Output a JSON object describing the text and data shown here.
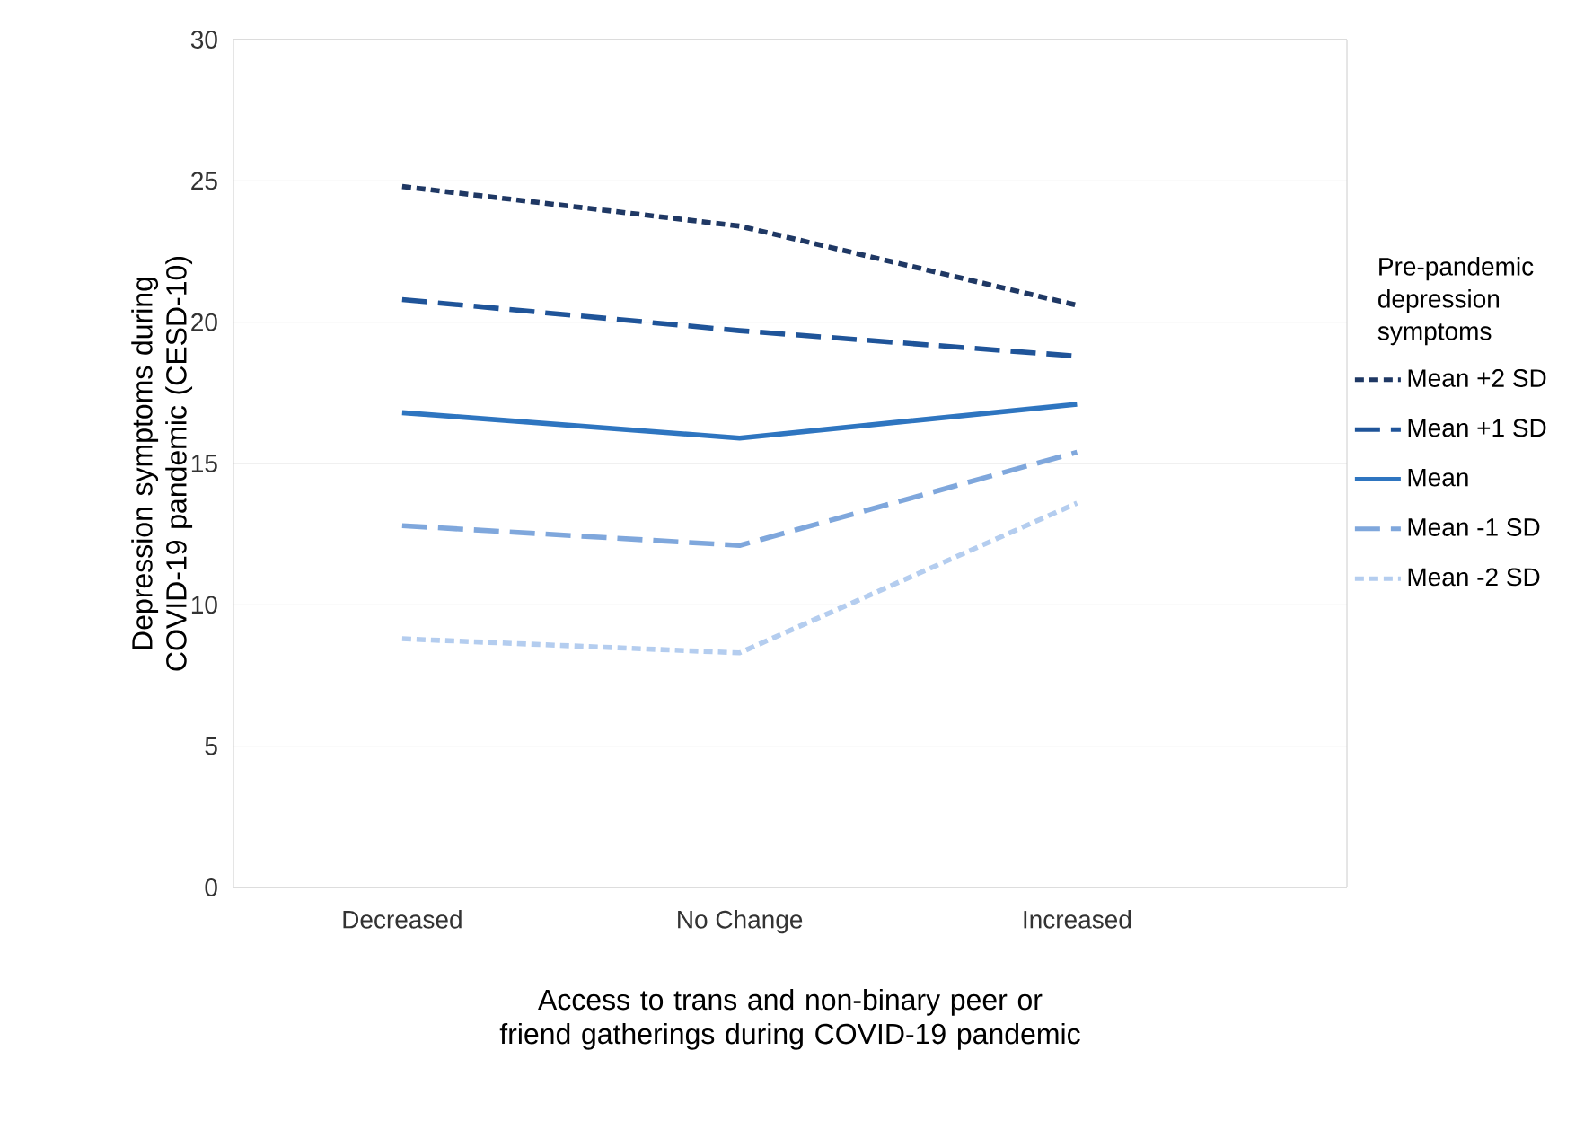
{
  "chart_data": {
    "type": "line",
    "xlabel": "Access to trans and non-binary peer or friend gatherings during COVID-19 pandemic",
    "ylabel": "Depression symptoms during COVID-19 pandemic (CESD-10)",
    "legend_title": "Pre-pandemic depression symptoms",
    "categories": [
      "Decreased",
      "No Change",
      "Increased"
    ],
    "series": [
      {
        "name": "Mean +2 SD",
        "color": "#1f3864",
        "line_style": "dotted",
        "values": [
          24.8,
          23.4,
          20.6
        ]
      },
      {
        "name": "Mean +1 SD",
        "color": "#1f5499",
        "line_style": "dashed",
        "values": [
          20.8,
          19.7,
          18.8
        ]
      },
      {
        "name": "Mean",
        "color": "#2e75c0",
        "line_style": "solid",
        "values": [
          16.8,
          15.9,
          17.1
        ]
      },
      {
        "name": "Mean -1 SD",
        "color": "#7fa7dc",
        "line_style": "dashed",
        "values": [
          12.8,
          12.1,
          15.4
        ]
      },
      {
        "name": "Mean -2 SD",
        "color": "#b4cdef",
        "line_style": "dotted",
        "values": [
          8.8,
          8.3,
          13.6
        ]
      }
    ],
    "ylim": [
      0,
      30
    ],
    "yticks": [
      0,
      5,
      10,
      15,
      20,
      25,
      30
    ],
    "grid": "y",
    "legend": "right",
    "marker": "none"
  }
}
